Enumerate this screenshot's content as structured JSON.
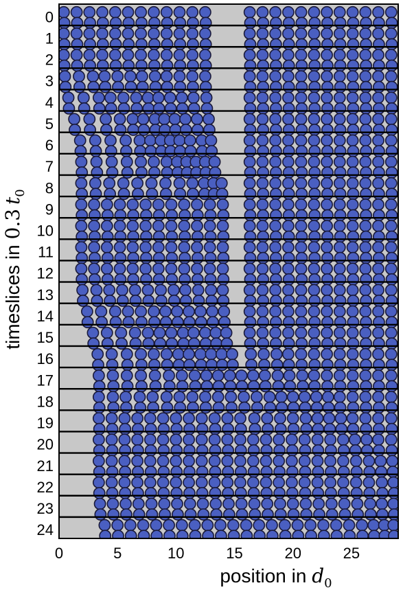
{
  "chart_data": {
    "type": "scatter",
    "title": "",
    "xlabel": {
      "text": "position in ",
      "symbol": "d",
      "subscript": "0"
    },
    "ylabel": {
      "text": "timeslices in ",
      "factor": "0.3",
      "symbol": "t",
      "subscript": "0"
    },
    "xlim": [
      0,
      29
    ],
    "ylim": [
      0,
      25
    ],
    "x_ticks": [
      "0",
      "5",
      "10",
      "15",
      "20",
      "25"
    ],
    "y_ticks": [
      "0",
      "1",
      "2",
      "3",
      "4",
      "5",
      "6",
      "7",
      "8",
      "9",
      "10",
      "11",
      "12",
      "13",
      "14",
      "15",
      "16",
      "17",
      "18",
      "19",
      "20",
      "21",
      "22",
      "23",
      "24"
    ],
    "grid": false,
    "legend": "none",
    "colors": {
      "background": "#c8c8c8",
      "particle_fill": "#4a5fc1",
      "particle_edge": "#1a1a3a",
      "slice_line": "#000000"
    },
    "particle_diameter": 1,
    "series": [
      {
        "timeslice": 0,
        "x": [
          0.4,
          1.5,
          2.6,
          3.7,
          4.8,
          5.9,
          7.0,
          8.1,
          9.2,
          10.3,
          11.4,
          12.5,
          16.3,
          17.4,
          18.5,
          19.6,
          20.7,
          21.8,
          22.9,
          24.0,
          25.1,
          26.2,
          27.3,
          28.4
        ]
      },
      {
        "timeslice": 1,
        "x": [
          0.4,
          1.5,
          2.6,
          3.7,
          4.8,
          5.9,
          7.0,
          8.1,
          9.2,
          10.3,
          11.4,
          12.5,
          16.3,
          17.4,
          18.5,
          19.6,
          20.7,
          21.8,
          22.9,
          24.0,
          25.1,
          26.2,
          27.3,
          28.4
        ]
      },
      {
        "timeslice": 2,
        "x": [
          0.4,
          1.5,
          2.6,
          3.7,
          4.8,
          5.9,
          7.0,
          8.1,
          9.2,
          10.3,
          11.4,
          12.5,
          16.3,
          17.4,
          18.5,
          19.6,
          20.7,
          21.8,
          22.9,
          24.0,
          25.1,
          26.2,
          27.3,
          28.4
        ]
      },
      {
        "timeslice": 3,
        "x": [
          0.5,
          1.7,
          2.9,
          3.9,
          5.0,
          6.1,
          7.1,
          8.2,
          9.2,
          10.3,
          11.4,
          12.5,
          16.3,
          17.4,
          18.5,
          19.6,
          20.7,
          21.8,
          22.9,
          24.0,
          25.1,
          26.2,
          27.3,
          28.4
        ]
      },
      {
        "timeslice": 4,
        "x": [
          0.8,
          2.1,
          3.4,
          4.4,
          5.5,
          6.6,
          7.6,
          8.5,
          9.5,
          10.5,
          11.5,
          12.6,
          16.3,
          17.4,
          18.5,
          19.6,
          20.7,
          21.8,
          22.9,
          24.0,
          25.1,
          26.2,
          27.3,
          28.4
        ]
      },
      {
        "timeslice": 5,
        "x": [
          1.3,
          2.6,
          4.0,
          5.2,
          6.3,
          7.2,
          8.2,
          9.0,
          9.9,
          10.8,
          11.8,
          12.8,
          16.3,
          17.4,
          18.5,
          19.6,
          20.7,
          21.8,
          22.9,
          24.0,
          25.1,
          26.2,
          27.3,
          28.4
        ]
      },
      {
        "timeslice": 6,
        "x": [
          1.8,
          3.1,
          4.4,
          5.7,
          6.9,
          7.8,
          8.7,
          9.5,
          10.3,
          11.2,
          12.2,
          13.0,
          16.3,
          17.4,
          18.5,
          19.6,
          20.7,
          21.8,
          22.9,
          24.0,
          25.1,
          26.2,
          27.3,
          28.4
        ]
      },
      {
        "timeslice": 7,
        "x": [
          1.9,
          3.2,
          4.5,
          5.8,
          7.0,
          8.1,
          9.2,
          10.1,
          10.9,
          11.7,
          12.5,
          13.3,
          16.3,
          17.4,
          18.5,
          19.6,
          20.7,
          21.8,
          22.9,
          24.0,
          25.1,
          26.2,
          27.3,
          28.4
        ]
      },
      {
        "timeslice": 8,
        "x": [
          1.9,
          3.1,
          4.3,
          5.5,
          6.7,
          7.9,
          9.1,
          10.3,
          11.4,
          12.4,
          13.2,
          13.9,
          16.3,
          17.4,
          18.5,
          19.6,
          20.7,
          21.8,
          22.9,
          24.0,
          25.1,
          26.2,
          27.3,
          28.4
        ]
      },
      {
        "timeslice": 9,
        "x": [
          1.9,
          3.0,
          4.1,
          5.2,
          6.3,
          7.4,
          8.5,
          9.6,
          10.7,
          11.8,
          12.9,
          14.0,
          16.3,
          17.4,
          18.5,
          19.6,
          20.7,
          21.8,
          22.9,
          24.0,
          25.1,
          26.2,
          27.3,
          28.4
        ]
      },
      {
        "timeslice": 10,
        "x": [
          1.9,
          3.0,
          4.1,
          5.2,
          6.3,
          7.4,
          8.5,
          9.6,
          10.7,
          11.8,
          12.9,
          14.0,
          16.3,
          17.4,
          18.5,
          19.6,
          20.7,
          21.8,
          22.9,
          24.0,
          25.1,
          26.2,
          27.3,
          28.4
        ]
      },
      {
        "timeslice": 11,
        "x": [
          1.9,
          3.0,
          4.1,
          5.2,
          6.3,
          7.4,
          8.5,
          9.6,
          10.7,
          11.8,
          12.9,
          14.0,
          16.3,
          17.4,
          18.5,
          19.6,
          20.7,
          21.8,
          22.9,
          24.0,
          25.1,
          26.2,
          27.3,
          28.4
        ]
      },
      {
        "timeslice": 12,
        "x": [
          1.9,
          3.0,
          4.1,
          5.2,
          6.3,
          7.4,
          8.5,
          9.6,
          10.7,
          11.8,
          12.9,
          14.0,
          16.3,
          17.4,
          18.5,
          19.6,
          20.7,
          21.8,
          22.9,
          24.0,
          25.1,
          26.2,
          27.3,
          28.4
        ]
      },
      {
        "timeslice": 13,
        "x": [
          2.0,
          3.2,
          4.3,
          5.4,
          6.5,
          7.6,
          8.7,
          9.8,
          10.8,
          11.9,
          13.0,
          14.0,
          16.3,
          17.4,
          18.5,
          19.6,
          20.7,
          21.8,
          22.9,
          24.0,
          25.1,
          26.2,
          27.3,
          28.4
        ]
      },
      {
        "timeslice": 14,
        "x": [
          2.4,
          3.6,
          4.8,
          5.9,
          7.0,
          8.1,
          9.1,
          10.1,
          11.1,
          12.1,
          13.1,
          14.1,
          16.3,
          17.4,
          18.5,
          19.6,
          20.7,
          21.8,
          22.9,
          24.0,
          25.1,
          26.2,
          27.3,
          28.4
        ]
      },
      {
        "timeslice": 15,
        "x": [
          2.9,
          4.1,
          5.3,
          6.5,
          7.6,
          8.6,
          9.6,
          10.6,
          11.5,
          12.5,
          13.4,
          14.3,
          16.3,
          17.4,
          18.5,
          19.6,
          20.7,
          21.8,
          22.9,
          24.0,
          25.1,
          26.2,
          27.3,
          28.4
        ]
      },
      {
        "timeslice": 16,
        "x": [
          3.3,
          4.5,
          5.8,
          7.0,
          8.1,
          9.2,
          10.2,
          11.1,
          12.1,
          13.0,
          13.9,
          14.8,
          16.4,
          17.5,
          18.6,
          19.6,
          20.7,
          21.8,
          22.9,
          24.0,
          25.1,
          26.2,
          27.3,
          28.4
        ]
      },
      {
        "timeslice": 17,
        "x": [
          3.4,
          4.6,
          5.8,
          7.0,
          8.2,
          9.4,
          10.5,
          11.6,
          12.6,
          13.6,
          14.6,
          15.6,
          16.6,
          17.6,
          18.7,
          19.7,
          20.8,
          21.8,
          22.9,
          24.0,
          25.1,
          26.2,
          27.3,
          28.4
        ]
      },
      {
        "timeslice": 18,
        "x": [
          3.4,
          4.6,
          5.7,
          6.9,
          8.0,
          9.2,
          10.3,
          11.4,
          12.5,
          13.6,
          14.7,
          15.8,
          16.9,
          18.0,
          19.0,
          20.0,
          21.0,
          22.0,
          23.0,
          24.0,
          25.1,
          26.2,
          27.3,
          28.4
        ]
      },
      {
        "timeslice": 19,
        "x": [
          3.4,
          4.5,
          5.6,
          6.7,
          7.8,
          8.9,
          10.0,
          11.1,
          12.2,
          13.3,
          14.4,
          15.5,
          16.7,
          17.8,
          18.9,
          20.0,
          21.1,
          22.1,
          23.1,
          24.1,
          25.1,
          26.2,
          27.3,
          28.4
        ]
      },
      {
        "timeslice": 20,
        "x": [
          3.4,
          4.5,
          5.6,
          6.7,
          7.8,
          8.9,
          10.0,
          11.1,
          12.2,
          13.3,
          14.4,
          15.5,
          16.6,
          17.7,
          18.8,
          19.9,
          21.0,
          22.1,
          23.2,
          24.3,
          25.3,
          26.3,
          27.3,
          28.4
        ]
      },
      {
        "timeslice": 21,
        "x": [
          3.4,
          4.5,
          5.6,
          6.7,
          7.8,
          8.9,
          10.0,
          11.1,
          12.2,
          13.3,
          14.4,
          15.5,
          16.6,
          17.7,
          18.8,
          19.9,
          21.0,
          22.1,
          23.2,
          24.3,
          25.4,
          26.5,
          27.5,
          28.5
        ]
      },
      {
        "timeslice": 22,
        "x": [
          3.4,
          4.5,
          5.6,
          6.7,
          7.8,
          8.9,
          10.0,
          11.1,
          12.2,
          13.3,
          14.4,
          15.5,
          16.6,
          17.7,
          18.8,
          19.9,
          21.0,
          22.1,
          23.2,
          24.3,
          25.4,
          26.5,
          27.6,
          28.6
        ]
      },
      {
        "timeslice": 23,
        "x": [
          3.5,
          4.6,
          5.7,
          6.8,
          7.9,
          9.0,
          10.1,
          11.2,
          12.3,
          13.4,
          14.5,
          15.6,
          16.7,
          17.8,
          18.9,
          20.0,
          21.1,
          22.2,
          23.3,
          24.4,
          25.5,
          26.6,
          27.6,
          28.6
        ]
      },
      {
        "timeslice": 24,
        "x": [
          3.9,
          5.0,
          6.1,
          7.2,
          8.3,
          9.4,
          10.5,
          11.6,
          12.7,
          13.8,
          14.9,
          16.0,
          17.1,
          18.2,
          19.3,
          20.4,
          21.5,
          22.6,
          23.7,
          24.8,
          25.9,
          26.9,
          27.8,
          28.6
        ]
      }
    ]
  }
}
